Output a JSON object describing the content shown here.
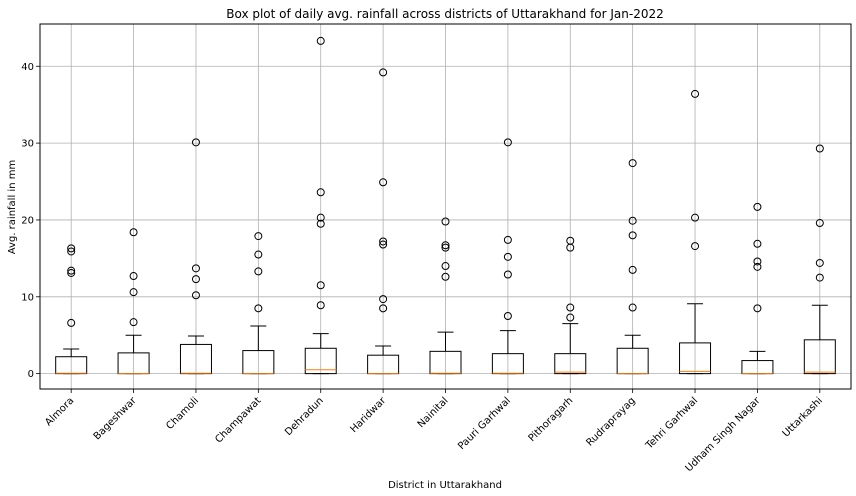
{
  "chart_data": {
    "type": "box",
    "title": "Box plot of daily avg. rainfall across districts of Uttarakhand for Jan-2022",
    "xlabel": "District in Uttarakhand",
    "ylabel": "Avg. rainfall in mm",
    "ylim": [
      -2,
      45.5
    ],
    "yticks": [
      0,
      10,
      20,
      30,
      40
    ],
    "grid": true,
    "colors": {
      "box": "#000000",
      "median": "#ff7f0e",
      "grid": "#b0b0b0",
      "flier": "#000000"
    },
    "categories": [
      "Almora",
      "Bageshwar",
      "Chamoli",
      "Champawat",
      "Dehradun",
      "Haridwar",
      "Nainital",
      "Pauri Garhwal",
      "Pithoragarh",
      "Rudraprayag",
      "Tehri Garhwal",
      "Udham Singh Nagar",
      "Uttarkashi"
    ],
    "boxes": [
      {
        "whisker_low": 0,
        "q1": 0,
        "median": 0.05,
        "q3": 2.2,
        "whisker_high": 3.2,
        "fliers": [
          6.6,
          13.1,
          13.4,
          15.9,
          16.3
        ]
      },
      {
        "whisker_low": 0,
        "q1": 0,
        "median": 0,
        "q3": 2.7,
        "whisker_high": 5.0,
        "fliers": [
          6.7,
          10.6,
          12.7,
          18.4
        ]
      },
      {
        "whisker_low": 0,
        "q1": 0,
        "median": 0.05,
        "q3": 3.8,
        "whisker_high": 4.9,
        "fliers": [
          10.2,
          12.3,
          13.7,
          30.1
        ]
      },
      {
        "whisker_low": 0,
        "q1": 0,
        "median": 0,
        "q3": 3.0,
        "whisker_high": 6.2,
        "fliers": [
          8.5,
          13.3,
          15.5,
          17.9
        ]
      },
      {
        "whisker_low": 0,
        "q1": 0,
        "median": 0.5,
        "q3": 3.3,
        "whisker_high": 5.2,
        "fliers": [
          8.9,
          11.5,
          19.5,
          20.3,
          23.6,
          43.3
        ]
      },
      {
        "whisker_low": 0,
        "q1": 0,
        "median": 0,
        "q3": 2.4,
        "whisker_high": 3.6,
        "fliers": [
          8.5,
          9.7,
          16.8,
          17.2,
          24.9,
          39.2
        ]
      },
      {
        "whisker_low": 0,
        "q1": 0,
        "median": 0.05,
        "q3": 2.9,
        "whisker_high": 5.4,
        "fliers": [
          12.6,
          14.0,
          16.4,
          16.7,
          19.8
        ]
      },
      {
        "whisker_low": 0,
        "q1": 0,
        "median": 0.05,
        "q3": 2.6,
        "whisker_high": 5.6,
        "fliers": [
          7.5,
          12.9,
          15.2,
          17.4,
          30.1
        ]
      },
      {
        "whisker_low": 0,
        "q1": 0,
        "median": 0.2,
        "q3": 2.6,
        "whisker_high": 6.5,
        "fliers": [
          7.3,
          8.6,
          16.4,
          17.3
        ]
      },
      {
        "whisker_low": 0,
        "q1": 0,
        "median": 0,
        "q3": 3.3,
        "whisker_high": 5.0,
        "fliers": [
          8.6,
          13.5,
          18.0,
          19.9,
          27.4
        ]
      },
      {
        "whisker_low": 0,
        "q1": 0,
        "median": 0.3,
        "q3": 4.0,
        "whisker_high": 9.1,
        "fliers": [
          16.6,
          20.3,
          36.4
        ]
      },
      {
        "whisker_low": 0,
        "q1": 0,
        "median": 0,
        "q3": 1.7,
        "whisker_high": 2.9,
        "fliers": [
          8.5,
          13.9,
          14.6,
          16.9,
          21.7
        ]
      },
      {
        "whisker_low": 0,
        "q1": 0,
        "median": 0.2,
        "q3": 4.4,
        "whisker_high": 8.9,
        "fliers": [
          12.5,
          14.4,
          19.6,
          29.3
        ]
      }
    ]
  }
}
